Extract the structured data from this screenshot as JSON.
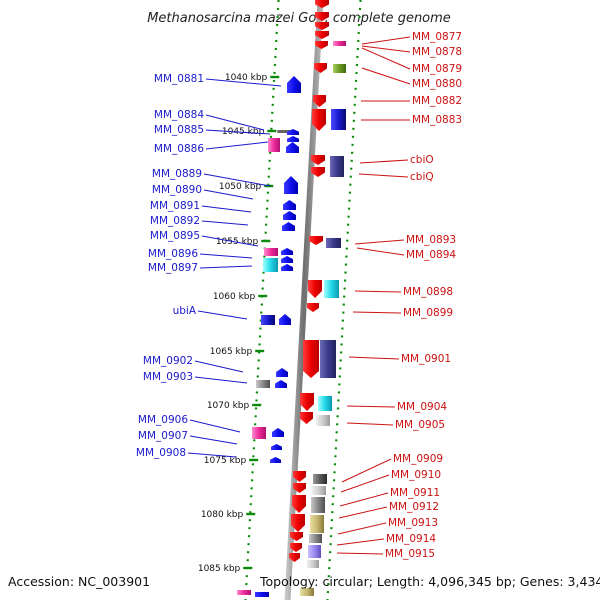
{
  "title": "Methanosarcina mazei Go1, complete genome",
  "footer": {
    "accession": "Accession: NC_003901",
    "topology": "Topology: circular; Length: 4,096,345 bp; Genes: 3,434"
  },
  "scale_labels": [
    "1040 kbp",
    "1045 kbp",
    "1050 kbp",
    "1055 kbp",
    "1060 kbp",
    "1065 kbp",
    "1070 kbp",
    "1075 kbp",
    "1080 kbp",
    "1085 kbp"
  ],
  "left_genes": [
    "MM_0881",
    "MM_0884",
    "MM_0885",
    "MM_0886",
    "MM_0889",
    "MM_0890",
    "MM_0891",
    "MM_0892",
    "MM_0895",
    "MM_0896",
    "MM_0897",
    "ubiA",
    "MM_0902",
    "MM_0903",
    "MM_0906",
    "MM_0907",
    "MM_0908"
  ],
  "right_genes": [
    "MM_0877",
    "MM_0878",
    "MM_0879",
    "MM_0880",
    "MM_0882",
    "MM_0883",
    "cbiO",
    "cbiQ",
    "MM_0893",
    "MM_0894",
    "MM_0898",
    "MM_0899",
    "MM_0901",
    "MM_0904",
    "MM_0905",
    "MM_0909",
    "MM_0910",
    "MM_0911",
    "MM_0912",
    "MM_0913",
    "MM_0914",
    "MM_0915"
  ],
  "colors": {
    "forward_strand": "#ee1111",
    "reverse_strand": "#1111ee",
    "left_label": "#1a1acc",
    "right_label": "#cc1111",
    "backbone": "#888888",
    "scale_track": "#0a8a0a"
  }
}
